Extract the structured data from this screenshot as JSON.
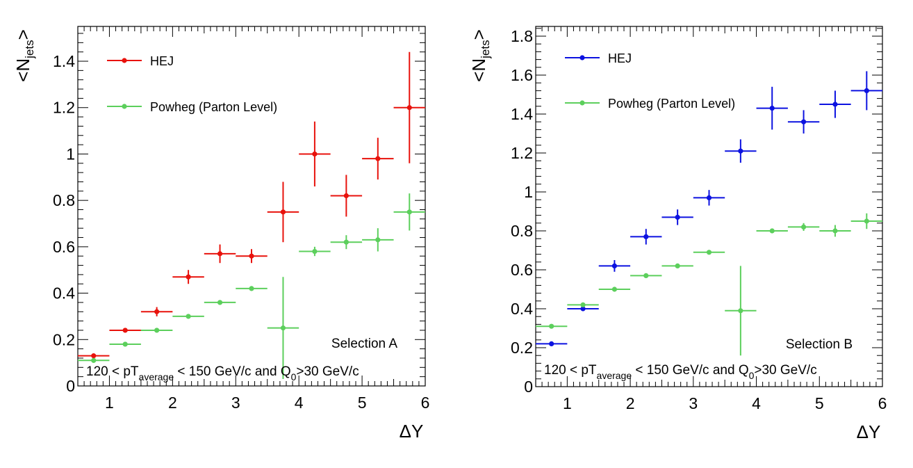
{
  "chart_data": [
    {
      "type": "scatter",
      "xlabel": "ΔY",
      "ylabel": "<N_jets>",
      "xlim": [
        0.5,
        6
      ],
      "ylim": [
        0,
        1.55
      ],
      "xticks": [
        "1",
        "2",
        "3",
        "4",
        "5",
        "6"
      ],
      "yticks": [
        "0",
        "0.2",
        "0.4",
        "0.6",
        "0.8",
        "1",
        "1.2",
        "1.4"
      ],
      "legend_placement": "top-left",
      "annotation": "Selection A",
      "cut_text": {
        "prefix": "120 < pT",
        "sub1": "average",
        "middle": " < 150 GeV/c and Q",
        "sub2": "0",
        "suffix": ">30 GeV/c"
      },
      "series": [
        {
          "name": "HEJ",
          "color": "#e8120c",
          "x": [
            0.75,
            1.25,
            1.75,
            2.25,
            2.75,
            3.25,
            3.75,
            4.25,
            4.75,
            5.25,
            5.75
          ],
          "y": [
            0.13,
            0.24,
            0.32,
            0.47,
            0.57,
            0.56,
            0.75,
            1.0,
            0.82,
            0.98,
            1.2
          ],
          "yerr": [
            0.01,
            0.01,
            0.02,
            0.03,
            0.04,
            0.03,
            0.13,
            0.14,
            0.09,
            0.09,
            0.24
          ],
          "xerr": 0.25
        },
        {
          "name": "Powheg (Parton Level)",
          "color": "#5ccf5c",
          "x": [
            0.75,
            1.25,
            1.75,
            2.25,
            2.75,
            3.25,
            3.75,
            4.25,
            4.75,
            5.25,
            5.75
          ],
          "y": [
            0.11,
            0.18,
            0.24,
            0.3,
            0.36,
            0.42,
            0.25,
            0.58,
            0.62,
            0.63,
            0.75
          ],
          "yerr": [
            0.01,
            0.01,
            0.01,
            0.01,
            0.01,
            0.01,
            0.22,
            0.02,
            0.03,
            0.05,
            0.08
          ],
          "xerr": 0.25
        }
      ]
    },
    {
      "type": "scatter",
      "xlabel": "ΔY",
      "ylabel": "<N_jets>",
      "xlim": [
        0.5,
        6
      ],
      "ylim": [
        0,
        1.85
      ],
      "xticks": [
        "1",
        "2",
        "3",
        "4",
        "5",
        "6"
      ],
      "yticks": [
        "0",
        "0.2",
        "0.4",
        "0.6",
        "0.8",
        "1",
        "1.2",
        "1.4",
        "1.6",
        "1.8"
      ],
      "legend_placement": "top-left",
      "annotation": "Selection B",
      "cut_text": {
        "prefix": "120 < pT",
        "sub1": "average",
        "middle": " < 150 GeV/c and Q",
        "sub2": "0",
        "suffix": ">30 GeV/c"
      },
      "series": [
        {
          "name": "HEJ",
          "color": "#0c12e0",
          "x": [
            0.75,
            1.25,
            1.75,
            2.25,
            2.75,
            3.25,
            3.75,
            4.25,
            4.75,
            5.25,
            5.75
          ],
          "y": [
            0.22,
            0.4,
            0.62,
            0.77,
            0.87,
            0.97,
            1.21,
            1.43,
            1.36,
            1.45,
            1.52
          ],
          "yerr": [
            0.01,
            0.01,
            0.03,
            0.04,
            0.04,
            0.04,
            0.06,
            0.11,
            0.06,
            0.07,
            0.1
          ],
          "xerr": 0.25
        },
        {
          "name": "Powheg (Parton Level)",
          "color": "#5ccf5c",
          "x": [
            0.75,
            1.25,
            1.75,
            2.25,
            2.75,
            3.25,
            3.75,
            4.25,
            4.75,
            5.25,
            5.75
          ],
          "y": [
            0.31,
            0.42,
            0.5,
            0.57,
            0.62,
            0.69,
            0.39,
            0.8,
            0.82,
            0.8,
            0.85
          ],
          "yerr": [
            0.01,
            0.01,
            0.01,
            0.01,
            0.01,
            0.01,
            0.23,
            0.01,
            0.02,
            0.03,
            0.04
          ],
          "xerr": 0.25
        }
      ]
    }
  ]
}
